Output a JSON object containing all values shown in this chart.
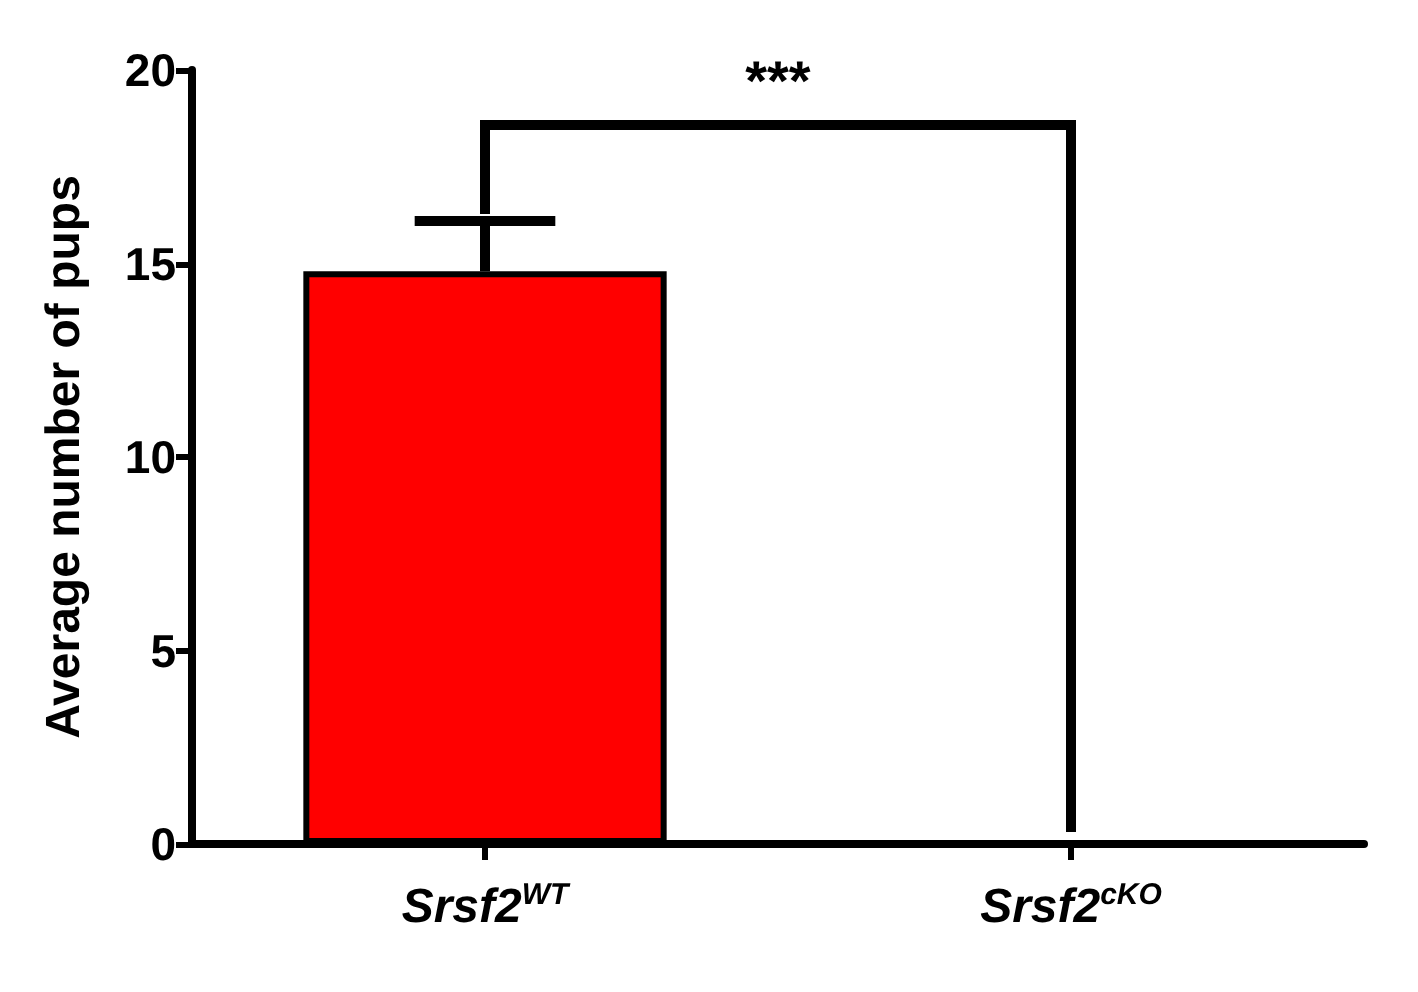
{
  "chart_data": {
    "type": "bar",
    "ylabel": "Average number of pups",
    "categories": [
      "Srsf2$^{WT}$",
      "Srsf2$^{cKO}$"
    ],
    "values": [
      14.8,
      0
    ],
    "color": "#ff0000",
    "errors": [
      [
        14.8,
        16.1
      ],
      null
    ],
    "ylim": [
      0,
      20
    ],
    "yticks": [
      0,
      5,
      10,
      15,
      20
    ],
    "grid": false,
    "annotations": [
      "***"
    ]
  }
}
